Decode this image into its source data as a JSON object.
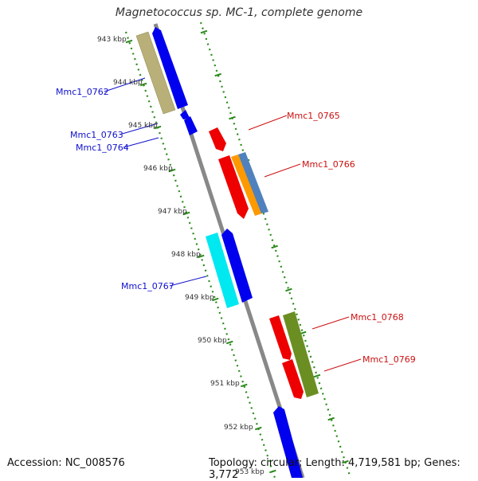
{
  "title": "Magnetococcus sp. MC-1, complete genome",
  "footer": {
    "accession": "Accession: NC_008576",
    "summary": "Topology: circular; Length: 4,719,581 bp; Genes: 3,772"
  },
  "colors": {
    "backbone": "#888888",
    "ruler": "#2a8a1a",
    "tick_label": "#333333",
    "label_minus": "#1010cc",
    "label_plus": "#cc1010"
  },
  "ruler": {
    "ticks": [
      {
        "label": "943 kbp"
      },
      {
        "label": "944 kbp"
      },
      {
        "label": "945 kbp"
      },
      {
        "label": "946 kbp"
      },
      {
        "label": "947 kbp"
      },
      {
        "label": "948 kbp"
      },
      {
        "label": "949 kbp"
      },
      {
        "label": "950 kbp"
      },
      {
        "label": "951 kbp"
      },
      {
        "label": "952 kbp"
      },
      {
        "label": "953 kbp"
      }
    ]
  },
  "genes": [
    {
      "name": "Mmc1_0762",
      "strand": "minus",
      "color": "#0000ee"
    },
    {
      "name": "Mmc1_0763",
      "strand": "minus",
      "color": "#0000ee"
    },
    {
      "name": "Mmc1_0764",
      "strand": "minus",
      "color": "#0000ee"
    },
    {
      "name": "Mmc1_0765",
      "strand": "plus",
      "color": "#ee0000"
    },
    {
      "name": "Mmc1_0766",
      "strand": "plus",
      "color": "#ee0000"
    },
    {
      "name": "Mmc1_0767",
      "strand": "minus",
      "color": "#0000ee"
    },
    {
      "name": "Mmc1_0768",
      "strand": "plus",
      "color": "#ee0000"
    },
    {
      "name": "Mmc1_0769",
      "strand": "plus",
      "color": "#ee0000"
    }
  ],
  "unlabeled_features": [
    {
      "color": "#b8b078"
    },
    {
      "color": "#ff9900"
    },
    {
      "color": "#4f81bd"
    },
    {
      "color": "#00e8f0"
    },
    {
      "color": "#6b8e23"
    },
    {
      "color": "#0000ee"
    }
  ]
}
